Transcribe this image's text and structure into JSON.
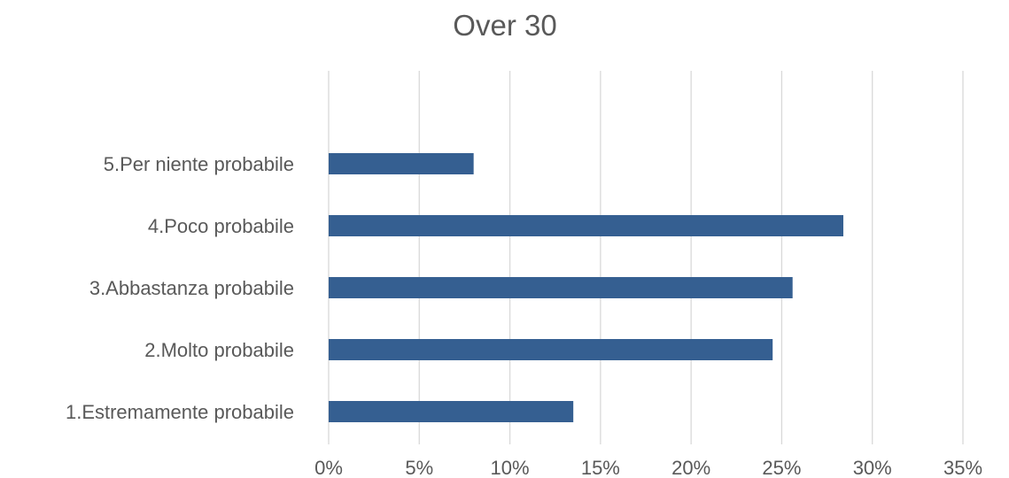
{
  "chart_data": {
    "type": "bar",
    "orientation": "horizontal",
    "title": "Over 30",
    "categories": [
      "5.Per niente probabile",
      "4.Poco probabile",
      "3.Abbastanza probabile",
      "2.Molto probabile",
      "1.Estremamente probabile"
    ],
    "values": [
      0.08,
      0.284,
      0.256,
      0.245,
      0.135
    ],
    "xlim": [
      0,
      0.35
    ],
    "x_ticks": [
      0,
      0.05,
      0.1,
      0.15,
      0.2,
      0.25,
      0.3,
      0.35
    ],
    "x_tick_labels": [
      "0%",
      "5%",
      "10%",
      "15%",
      "20%",
      "25%",
      "30%",
      "35%"
    ],
    "xlabel": "",
    "ylabel": "",
    "grid": true,
    "legend": "none",
    "bar_color": "#355f91",
    "grid_color": "#d9d9d9",
    "text_color": "#595959"
  }
}
